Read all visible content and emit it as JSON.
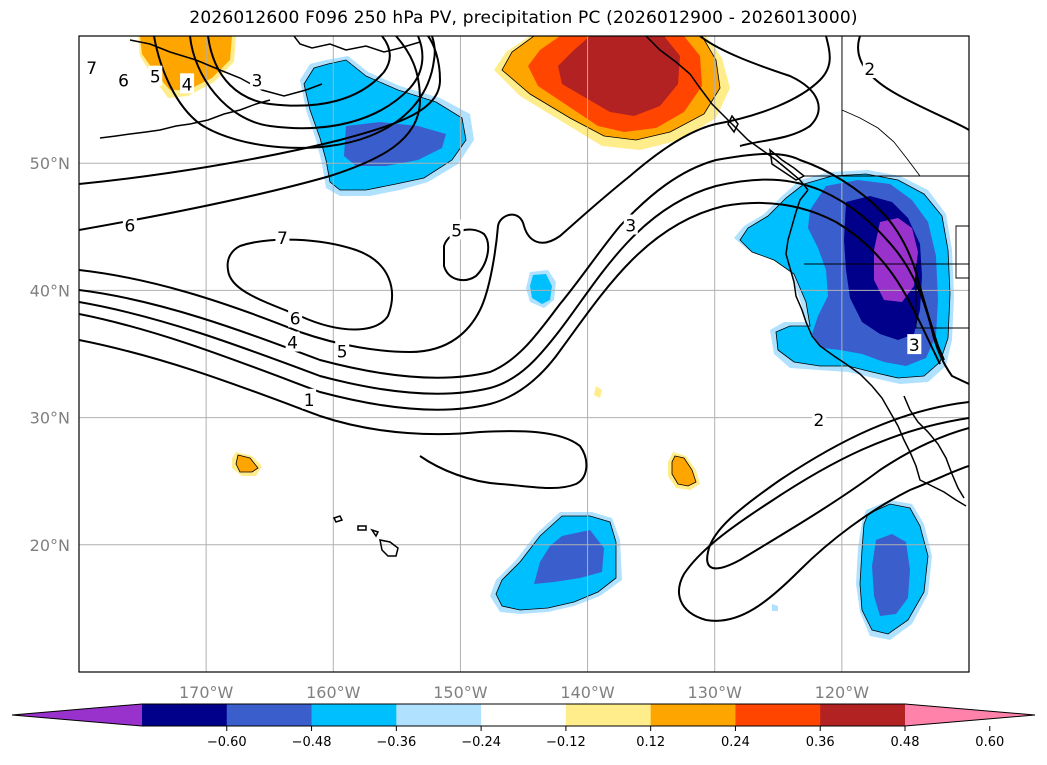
{
  "title": "2026012600 F096 250 hPa PV, precipitation PC (2026012900 - 2026013000)",
  "map_data": {
    "projection": "plate-carree",
    "lon_range": [
      -180,
      -110
    ],
    "lat_range": [
      10,
      60
    ],
    "lon_ticks": [
      {
        "value": -170,
        "label": "170°W"
      },
      {
        "value": -160,
        "label": "160°W"
      },
      {
        "value": -150,
        "label": "150°W"
      },
      {
        "value": -140,
        "label": "140°W"
      },
      {
        "value": -130,
        "label": "130°W"
      },
      {
        "value": -120,
        "label": "120°W"
      }
    ],
    "lat_ticks": [
      {
        "value": 50,
        "label": "50°N"
      },
      {
        "value": 40,
        "label": "40°N"
      },
      {
        "value": 30,
        "label": "30°N"
      },
      {
        "value": 20,
        "label": "20°N"
      }
    ],
    "contour_labels": [
      {
        "text": "7",
        "lon": -179,
        "lat": 57.5
      },
      {
        "text": "6",
        "lon": -176.5,
        "lat": 56.5
      },
      {
        "text": "5",
        "lon": -174,
        "lat": 56.8
      },
      {
        "text": "4",
        "lon": -171.5,
        "lat": 56.2
      },
      {
        "text": "3",
        "lon": -166,
        "lat": 56.5
      },
      {
        "text": "2",
        "lon": -117.8,
        "lat": 57.4
      },
      {
        "text": "6",
        "lon": -176,
        "lat": 45.1
      },
      {
        "text": "7",
        "lon": -164,
        "lat": 44.1
      },
      {
        "text": "5",
        "lon": -150.3,
        "lat": 44.7
      },
      {
        "text": "3",
        "lon": -136.6,
        "lat": 45.1
      },
      {
        "text": "6",
        "lon": -163,
        "lat": 37.8
      },
      {
        "text": "4",
        "lon": -163.2,
        "lat": 35.9
      },
      {
        "text": "5",
        "lon": -159.3,
        "lat": 35.2
      },
      {
        "text": "1",
        "lon": -161.9,
        "lat": 31.4
      },
      {
        "text": "2",
        "lon": -121.8,
        "lat": 29.8
      },
      {
        "text": "3",
        "lon": -114.3,
        "lat": 35.7
      }
    ]
  },
  "colorbar": {
    "colors": [
      "#9932CC",
      "#00008B",
      "#3A5FCD",
      "#00BFFF",
      "#B0E2FF",
      "#FFFFFF",
      "#FFEC8B",
      "#FFA500",
      "#FF4500",
      "#B22222",
      "#FF82AB"
    ],
    "ticks": [
      "−0.60",
      "−0.48",
      "−0.36",
      "−0.24",
      "−0.12",
      "0.12",
      "0.24",
      "0.36",
      "0.48",
      "0.60"
    ]
  }
}
